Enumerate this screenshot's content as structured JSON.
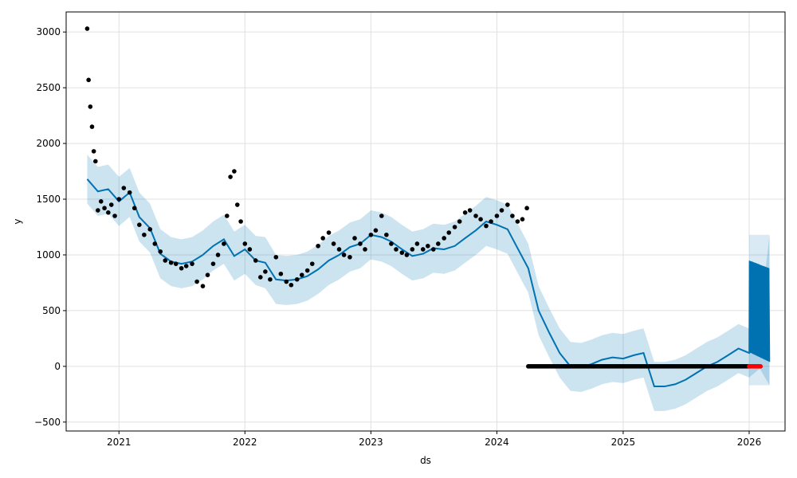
{
  "chart_data": {
    "type": "line",
    "title": "",
    "xlabel": "ds",
    "ylabel": "y",
    "xlim": [
      "2020-08-01",
      "2026-04-15"
    ],
    "ylim": [
      -580,
      3180
    ],
    "x_ticks": [
      {
        "date": "2021-01-01",
        "label": "2021"
      },
      {
        "date": "2022-01-01",
        "label": "2022"
      },
      {
        "date": "2023-01-01",
        "label": "2023"
      },
      {
        "date": "2024-01-01",
        "label": "2024"
      },
      {
        "date": "2025-01-01",
        "label": "2025"
      },
      {
        "date": "2026-01-01",
        "label": "2026"
      }
    ],
    "y_ticks": [
      -500,
      0,
      500,
      1000,
      1500,
      2000,
      2500,
      3000
    ],
    "grid": true,
    "legend": "none",
    "colors": {
      "forecast": "#0072B2",
      "interval": "#0072B2",
      "observed": "#000000",
      "holdout": "#ff0000",
      "grid": "#e0e0e0"
    },
    "series": [
      {
        "role": "forecast",
        "x": [
          "2020-10-01",
          "2020-11-01",
          "2020-12-01",
          "2021-01-01",
          "2021-02-01",
          "2021-03-01",
          "2021-04-01",
          "2021-05-01",
          "2021-06-01",
          "2021-07-01",
          "2021-08-01",
          "2021-09-01",
          "2021-10-01",
          "2021-11-01",
          "2021-12-01",
          "2022-01-01",
          "2022-02-01",
          "2022-03-01",
          "2022-04-01",
          "2022-05-01",
          "2022-06-01",
          "2022-07-01",
          "2022-08-01",
          "2022-09-01",
          "2022-10-01",
          "2022-11-01",
          "2022-12-01",
          "2023-01-01",
          "2023-02-01",
          "2023-03-01",
          "2023-04-01",
          "2023-05-01",
          "2023-06-01",
          "2023-07-01",
          "2023-08-01",
          "2023-09-01",
          "2023-10-01",
          "2023-11-01",
          "2023-12-01",
          "2024-01-01",
          "2024-02-01",
          "2024-03-01",
          "2024-04-01",
          "2024-05-01",
          "2024-06-01",
          "2024-07-01",
          "2024-08-01",
          "2024-09-01",
          "2024-10-01",
          "2024-11-01",
          "2024-12-01",
          "2025-01-01",
          "2025-02-01",
          "2025-03-01",
          "2025-04-01",
          "2025-05-01",
          "2025-06-01",
          "2025-07-01",
          "2025-08-01",
          "2025-09-01",
          "2025-10-01",
          "2025-11-01",
          "2025-12-01",
          "2026-01-01",
          "2026-02-01",
          "2026-03-01"
        ],
        "y": [
          1680,
          1570,
          1590,
          1480,
          1560,
          1340,
          1240,
          1010,
          940,
          920,
          940,
          1000,
          1080,
          1140,
          990,
          1050,
          950,
          930,
          780,
          770,
          780,
          810,
          870,
          950,
          1000,
          1070,
          1100,
          1180,
          1160,
          1120,
          1050,
          990,
          1010,
          1060,
          1050,
          1080,
          1150,
          1220,
          1300,
          1270,
          1230,
          1060,
          880,
          500,
          300,
          120,
          0,
          -10,
          20,
          60,
          80,
          70,
          100,
          120,
          -180,
          -180,
          -160,
          -120,
          -60,
          0,
          40,
          100,
          160,
          120,
          200,
          150
        ]
      },
      {
        "role": "interval",
        "x": [
          "2020-10-01",
          "2020-11-01",
          "2020-12-01",
          "2021-01-01",
          "2021-02-01",
          "2021-03-01",
          "2021-04-01",
          "2021-05-01",
          "2021-06-01",
          "2021-07-01",
          "2021-08-01",
          "2021-09-01",
          "2021-10-01",
          "2021-11-01",
          "2021-12-01",
          "2022-01-01",
          "2022-02-01",
          "2022-03-01",
          "2022-04-01",
          "2022-05-01",
          "2022-06-01",
          "2022-07-01",
          "2022-08-01",
          "2022-09-01",
          "2022-10-01",
          "2022-11-01",
          "2022-12-01",
          "2023-01-01",
          "2023-02-01",
          "2023-03-01",
          "2023-04-01",
          "2023-05-01",
          "2023-06-01",
          "2023-07-01",
          "2023-08-01",
          "2023-09-01",
          "2023-10-01",
          "2023-11-01",
          "2023-12-01",
          "2024-01-01",
          "2024-02-01",
          "2024-03-01",
          "2024-04-01",
          "2024-05-01",
          "2024-06-01",
          "2024-07-01",
          "2024-08-01",
          "2024-09-01",
          "2024-10-01",
          "2024-11-01",
          "2024-12-01",
          "2025-01-01",
          "2025-02-01",
          "2025-03-01",
          "2025-04-01",
          "2025-05-01",
          "2025-06-01",
          "2025-07-01",
          "2025-08-01",
          "2025-09-01",
          "2025-10-01",
          "2025-11-01",
          "2025-12-01",
          "2026-01-01",
          "2026-02-01",
          "2026-03-01"
        ],
        "lower": [
          1460,
          1350,
          1370,
          1260,
          1340,
          1120,
          1020,
          790,
          720,
          700,
          720,
          780,
          860,
          920,
          770,
          830,
          730,
          700,
          560,
          550,
          560,
          590,
          650,
          730,
          780,
          850,
          880,
          960,
          940,
          900,
          830,
          770,
          790,
          840,
          830,
          860,
          930,
          1000,
          1080,
          1050,
          1010,
          840,
          660,
          280,
          80,
          -100,
          -220,
          -230,
          -200,
          -160,
          -140,
          -150,
          -120,
          -100,
          -400,
          -400,
          -380,
          -340,
          -280,
          -220,
          -180,
          -120,
          -60,
          -100,
          -20,
          -170
        ],
        "upper": [
          1900,
          1790,
          1810,
          1700,
          1780,
          1560,
          1460,
          1230,
          1160,
          1140,
          1160,
          1220,
          1300,
          1360,
          1210,
          1270,
          1170,
          1160,
          1000,
          990,
          1000,
          1030,
          1090,
          1170,
          1220,
          1290,
          1320,
          1400,
          1380,
          1340,
          1270,
          1210,
          1230,
          1280,
          1270,
          1300,
          1370,
          1440,
          1520,
          1490,
          1450,
          1280,
          1100,
          720,
          520,
          340,
          220,
          210,
          240,
          280,
          300,
          290,
          320,
          340,
          40,
          40,
          60,
          100,
          160,
          220,
          260,
          320,
          380,
          340,
          420,
          1180
        ]
      },
      {
        "role": "observed",
        "x": [
          "2020-10-01",
          "2020-10-05",
          "2020-10-10",
          "2020-10-15",
          "2020-10-20",
          "2020-10-25",
          "2020-11-01",
          "2020-11-10",
          "2020-11-20",
          "2020-12-01",
          "2020-12-10",
          "2020-12-20",
          "2021-01-01",
          "2021-01-15",
          "2021-02-01",
          "2021-02-15",
          "2021-03-01",
          "2021-03-15",
          "2021-04-01",
          "2021-04-15",
          "2021-05-01",
          "2021-05-15",
          "2021-06-01",
          "2021-06-15",
          "2021-07-01",
          "2021-07-15",
          "2021-08-01",
          "2021-08-15",
          "2021-09-01",
          "2021-09-15",
          "2021-10-01",
          "2021-10-15",
          "2021-11-01",
          "2021-11-10",
          "2021-11-20",
          "2021-12-01",
          "2021-12-10",
          "2021-12-20",
          "2022-01-01",
          "2022-01-15",
          "2022-02-01",
          "2022-02-15",
          "2022-03-01",
          "2022-03-15",
          "2022-04-01",
          "2022-04-15",
          "2022-05-01",
          "2022-05-15",
          "2022-06-01",
          "2022-06-15",
          "2022-07-01",
          "2022-07-15",
          "2022-08-01",
          "2022-08-15",
          "2022-09-01",
          "2022-09-15",
          "2022-10-01",
          "2022-10-15",
          "2022-11-01",
          "2022-11-15",
          "2022-12-01",
          "2022-12-15",
          "2023-01-01",
          "2023-01-15",
          "2023-02-01",
          "2023-02-15",
          "2023-03-01",
          "2023-03-15",
          "2023-04-01",
          "2023-04-15",
          "2023-05-01",
          "2023-05-15",
          "2023-06-01",
          "2023-06-15",
          "2023-07-01",
          "2023-07-15",
          "2023-08-01",
          "2023-08-15",
          "2023-09-01",
          "2023-09-15",
          "2023-10-01",
          "2023-10-15",
          "2023-11-01",
          "2023-11-15",
          "2023-12-01",
          "2023-12-15",
          "2024-01-01",
          "2024-01-15",
          "2024-02-01",
          "2024-02-15",
          "2024-03-01",
          "2024-03-15",
          "2024-03-28"
        ],
        "y": [
          3030,
          2570,
          2330,
          2150,
          1930,
          1840,
          1400,
          1480,
          1420,
          1380,
          1450,
          1350,
          1500,
          1600,
          1560,
          1420,
          1270,
          1180,
          1230,
          1100,
          1030,
          950,
          930,
          920,
          880,
          900,
          920,
          760,
          720,
          820,
          920,
          1000,
          1100,
          1350,
          1700,
          1750,
          1450,
          1300,
          1100,
          1050,
          950,
          800,
          850,
          780,
          980,
          830,
          760,
          730,
          780,
          820,
          860,
          920,
          1080,
          1150,
          1200,
          1100,
          1050,
          1000,
          980,
          1150,
          1100,
          1050,
          1180,
          1220,
          1350,
          1180,
          1100,
          1050,
          1020,
          1000,
          1050,
          1100,
          1050,
          1080,
          1050,
          1100,
          1150,
          1200,
          1250,
          1300,
          1380,
          1400,
          1350,
          1320,
          1260,
          1300,
          1350,
          1400,
          1450,
          1350,
          1300,
          1320,
          1420
        ]
      },
      {
        "role": "observed",
        "x_start": "2024-04-01",
        "x_end": "2026-01-01",
        "y": 0
      },
      {
        "role": "holdout",
        "x_start": "2026-01-01",
        "x_end": "2026-02-05",
        "y": 0
      },
      {
        "role": "forecast-oscillation",
        "x_start": "2026-01-01",
        "x_end": "2026-03-01",
        "peak": [
          950,
          880
        ],
        "trough": [
          130,
          40
        ],
        "interval_upper": 1180,
        "interval_lower": -170
      }
    ]
  }
}
